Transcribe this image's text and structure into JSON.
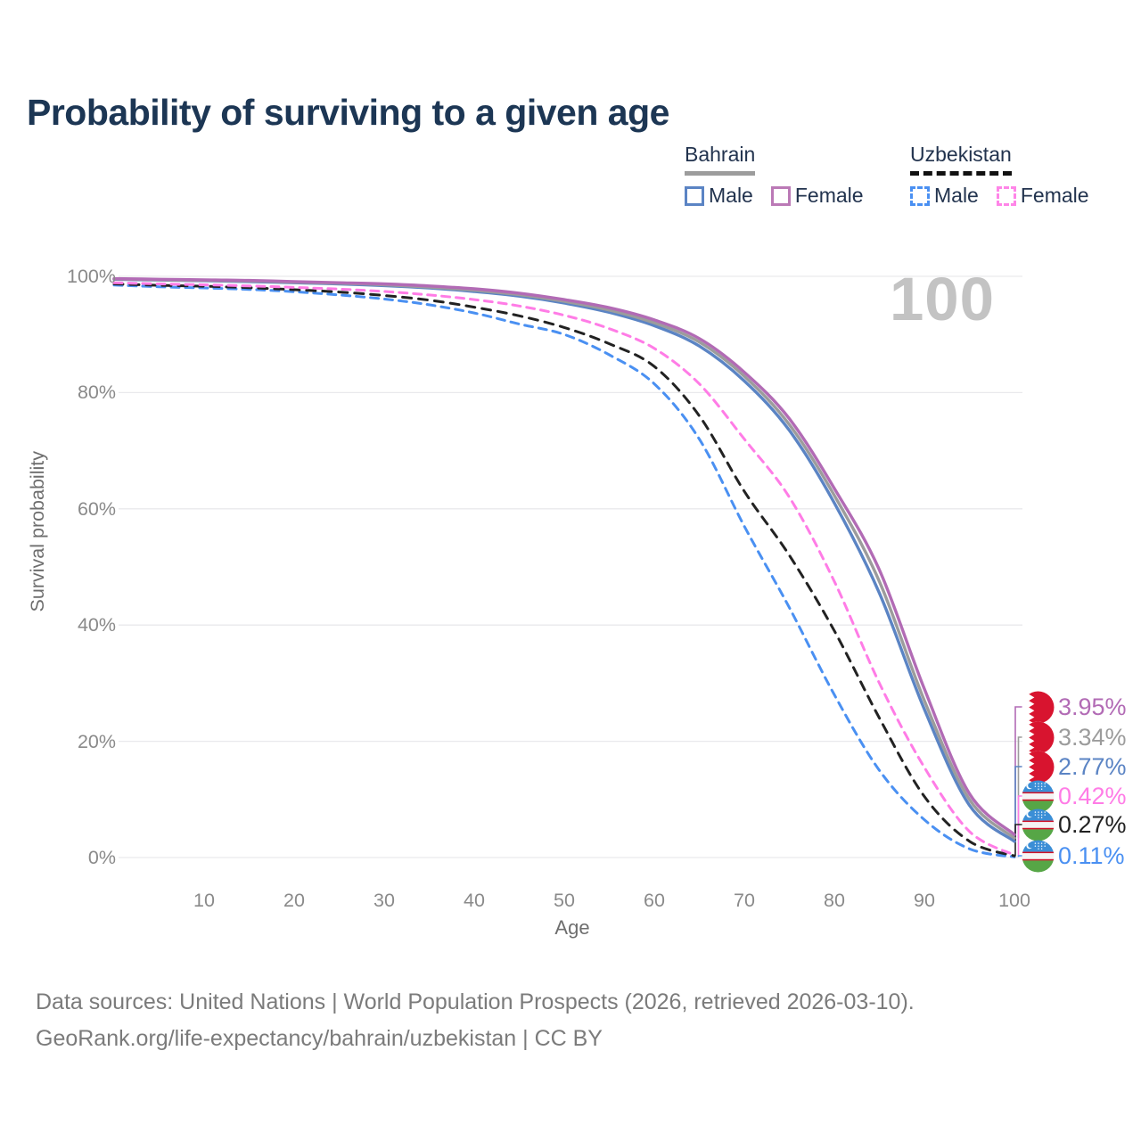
{
  "title": "Probability of surviving to a given age",
  "age_counter": "100",
  "legend": {
    "groups": [
      {
        "name": "Bahrain",
        "line_style": "solid",
        "underline_color": "#9c9c9c",
        "items": [
          {
            "label": "Male",
            "color": "#5b84c4"
          },
          {
            "label": "Female",
            "color": "#bb79b6"
          }
        ]
      },
      {
        "name": "Uzbekistan",
        "line_style": "dashed",
        "underline_color": "#111111",
        "items": [
          {
            "label": "Male",
            "color": "#4a90f2"
          },
          {
            "label": "Female",
            "color": "#ff85e8"
          }
        ]
      }
    ]
  },
  "chart_data": {
    "type": "line",
    "title": "Probability of surviving to a given age",
    "xlabel": "Age",
    "ylabel": "Survival probability",
    "xlim": [
      0,
      100
    ],
    "ylim": [
      0,
      100
    ],
    "grid": "horizontal",
    "legend_position": "top-right",
    "x": [
      0,
      5,
      10,
      15,
      20,
      25,
      30,
      35,
      40,
      45,
      50,
      55,
      60,
      65,
      70,
      75,
      80,
      85,
      90,
      95,
      100
    ],
    "xticks": [
      10,
      20,
      30,
      40,
      50,
      60,
      70,
      80,
      90,
      100
    ],
    "yticks": [
      {
        "value": 0,
        "label": "0%"
      },
      {
        "value": 20,
        "label": "20%"
      },
      {
        "value": 40,
        "label": "40%"
      },
      {
        "value": 60,
        "label": "60%"
      },
      {
        "value": 80,
        "label": "80%"
      },
      {
        "value": 100,
        "label": "100%"
      }
    ],
    "series": [
      {
        "name": "Bahrain Female",
        "country": "Bahrain",
        "sex": "Female",
        "style": "solid",
        "color": "#b26bb5",
        "end_label": "3.95%",
        "values": [
          99.6,
          99.5,
          99.4,
          99.3,
          99.1,
          98.9,
          98.7,
          98.35,
          97.85,
          97.1,
          96.0,
          94.6,
          92.5,
          89.3,
          83.5,
          75.5,
          63.5,
          49.5,
          29.0,
          11.0,
          3.95
        ]
      },
      {
        "name": "Bahrain Both sexes",
        "country": "Bahrain",
        "sex": "Total",
        "style": "solid",
        "color": "#9c9c9c",
        "end_label": "3.34%",
        "values": [
          99.55,
          99.4,
          99.3,
          99.2,
          99.0,
          98.8,
          98.55,
          98.15,
          97.6,
          96.85,
          95.7,
          94.2,
          92.0,
          88.7,
          82.8,
          74.5,
          62.3,
          47.5,
          27.0,
          10.0,
          3.34
        ]
      },
      {
        "name": "Bahrain Male",
        "country": "Bahrain",
        "sex": "Male",
        "style": "solid",
        "color": "#5b84c4",
        "end_label": "2.77%",
        "values": [
          99.5,
          99.35,
          99.25,
          99.1,
          98.9,
          98.7,
          98.4,
          98.0,
          97.4,
          96.6,
          95.4,
          93.8,
          91.5,
          88.0,
          82.0,
          73.5,
          61.0,
          45.5,
          25.5,
          9.0,
          2.77
        ]
      },
      {
        "name": "Uzbekistan Female",
        "country": "Uzbekistan",
        "sex": "Female",
        "style": "dashed",
        "color": "#ff7ce6",
        "end_label": "0.42%",
        "values": [
          98.9,
          98.7,
          98.55,
          98.35,
          98.1,
          97.8,
          97.4,
          96.8,
          96.0,
          94.9,
          93.3,
          91.0,
          87.6,
          81.5,
          72.0,
          62.0,
          47.5,
          30.0,
          15.5,
          4.5,
          0.42
        ]
      },
      {
        "name": "Uzbekistan Both sexes",
        "country": "Uzbekistan",
        "sex": "Total",
        "style": "dashed",
        "color": "#222222",
        "end_label": "0.27%",
        "values": [
          98.7,
          98.45,
          98.3,
          98.05,
          97.7,
          97.3,
          96.7,
          95.9,
          94.7,
          93.2,
          91.2,
          88.4,
          84.5,
          76.0,
          63.0,
          52.0,
          39.0,
          24.0,
          10.5,
          2.8,
          0.27
        ]
      },
      {
        "name": "Uzbekistan Male",
        "country": "Uzbekistan",
        "sex": "Male",
        "style": "dashed",
        "color": "#4a90f2",
        "end_label": "0.11%",
        "values": [
          98.5,
          98.2,
          98.0,
          97.75,
          97.35,
          96.8,
          96.1,
          95.1,
          93.7,
          91.8,
          90.0,
          86.5,
          81.5,
          72.0,
          57.0,
          43.0,
          28.0,
          15.0,
          6.5,
          1.5,
          0.11
        ]
      }
    ]
  },
  "footer": {
    "line1": "Data sources: United Nations | World Population Prospects (2026, retrieved 2026-03-10).",
    "line2": "GeoRank.org/life-expectancy/bahrain/uzbekistan | CC BY"
  }
}
